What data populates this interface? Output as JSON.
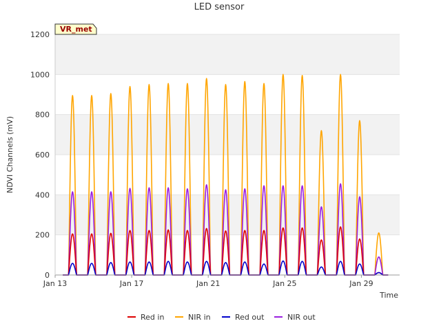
{
  "chart_data": {
    "type": "line",
    "title": "LED sensor",
    "xlabel": "Time",
    "ylabel": "NDVI Channels (mV)",
    "badge": "VR_met",
    "x_start": "2024-01-13",
    "x_end": "2024-01-31",
    "x_ticks": [
      {
        "label": "Jan 13",
        "date": "2024-01-13"
      },
      {
        "label": "Jan 17",
        "date": "2024-01-17"
      },
      {
        "label": "Jan 21",
        "date": "2024-01-21"
      },
      {
        "label": "Jan 25",
        "date": "2024-01-25"
      },
      {
        "label": "Jan 29",
        "date": "2024-01-29"
      }
    ],
    "ylim": [
      0,
      1200
    ],
    "y_ticks": [
      0,
      200,
      400,
      600,
      800,
      1000,
      1200
    ],
    "grid": true,
    "legend_position": "bottom",
    "series": [
      {
        "name": "Red in",
        "color": "#dd0000",
        "daily_peaks": [
          205,
          205,
          208,
          222,
          222,
          225,
          222,
          232,
          220,
          222,
          222,
          235,
          235,
          175,
          240,
          180,
          12
        ]
      },
      {
        "name": "NIR in",
        "color": "#ffa500",
        "daily_peaks": [
          895,
          895,
          905,
          940,
          950,
          955,
          955,
          980,
          950,
          965,
          955,
          1000,
          995,
          720,
          1000,
          770,
          210
        ]
      },
      {
        "name": "Red out",
        "color": "#0000cc",
        "daily_peaks": [
          58,
          58,
          62,
          65,
          65,
          68,
          65,
          68,
          62,
          65,
          55,
          70,
          68,
          40,
          68,
          55,
          12
        ]
      },
      {
        "name": "NIR out",
        "color": "#9a1fe0",
        "daily_peaks": [
          415,
          415,
          415,
          432,
          435,
          435,
          430,
          450,
          425,
          430,
          445,
          445,
          445,
          340,
          455,
          390,
          90
        ]
      }
    ]
  }
}
